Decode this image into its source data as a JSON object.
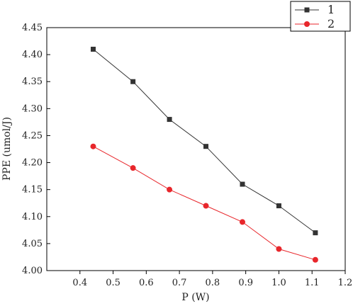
{
  "chart_data": {
    "type": "line",
    "title": "",
    "xlabel": "P (W)",
    "ylabel": "PPE (umol/J)",
    "xlim": [
      0.3,
      1.2
    ],
    "ylim": [
      4.0,
      4.45
    ],
    "xticks": [
      0.4,
      0.5,
      0.6,
      0.7,
      0.8,
      0.9,
      1.0,
      1.1,
      1.2
    ],
    "xtick_labels": [
      "0.4",
      "0.5",
      "0.6",
      "0.7",
      "0.8",
      "0.9",
      "1.0",
      "1.1",
      "1.2"
    ],
    "yticks": [
      4.0,
      4.05,
      4.1,
      4.15,
      4.2,
      4.25,
      4.3,
      4.35,
      4.4,
      4.45
    ],
    "ytick_labels": [
      "4.00",
      "4.05",
      "4.10",
      "4.15",
      "4.20",
      "4.25",
      "4.30",
      "4.35",
      "4.40",
      "4.45"
    ],
    "grid": false,
    "legend_position": "top-right",
    "x": [
      0.44,
      0.56,
      0.67,
      0.78,
      0.89,
      1.0,
      1.11
    ],
    "series": [
      {
        "name": "1",
        "values": [
          4.41,
          4.35,
          4.28,
          4.23,
          4.16,
          4.12,
          4.07
        ],
        "color": "#333333",
        "marker": "square"
      },
      {
        "name": "2",
        "values": [
          4.23,
          4.19,
          4.15,
          4.12,
          4.09,
          4.04,
          4.02
        ],
        "color": "#e8262b",
        "marker": "circle"
      }
    ]
  }
}
